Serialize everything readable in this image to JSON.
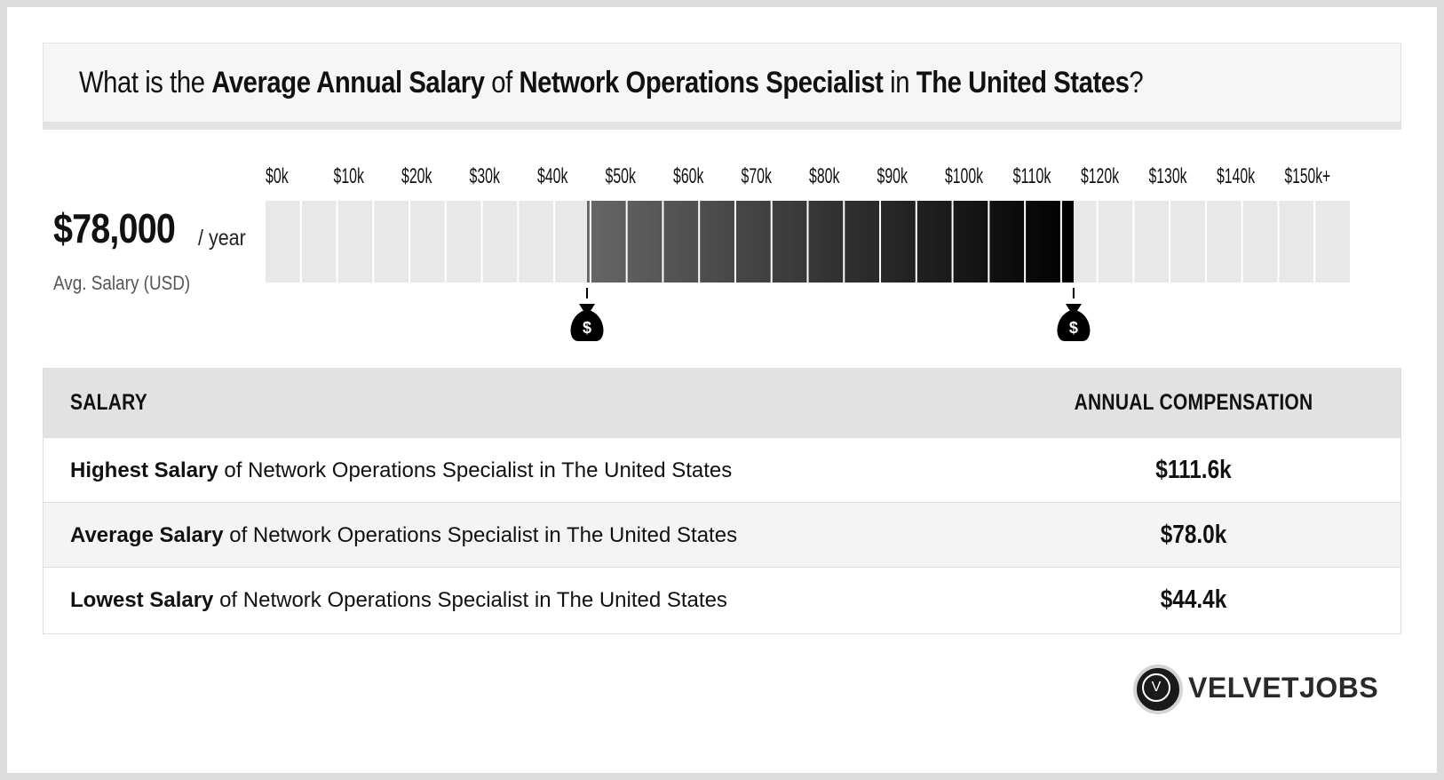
{
  "title": {
    "p1": "What is the ",
    "b1": "Average Annual Salary",
    "p2": " of ",
    "b2": "Network Operations Specialist",
    "p3": " in ",
    "b3": "The United States",
    "p4": "?"
  },
  "average": {
    "value": "$78,000",
    "unit": "/ year",
    "label": "Avg. Salary (USD)"
  },
  "chart_data": {
    "type": "bar",
    "tick_labels": [
      "$0k",
      "$10k",
      "$20k",
      "$30k",
      "$40k",
      "$50k",
      "$60k",
      "$70k",
      "$80k",
      "$90k",
      "$100k",
      "$110k",
      "$120k",
      "$130k",
      "$140k",
      "$150k+"
    ],
    "xlim": [
      0,
      150
    ],
    "range_low": 44.4,
    "range_high": 111.6,
    "average": 78.0,
    "low_marker_text": "$",
    "high_marker_text": "$",
    "colors": {
      "base": "#e8e8e8",
      "range_start": "#666666",
      "range_end": "#000000"
    }
  },
  "table": {
    "header_left": "SALARY",
    "header_right": "ANNUAL COMPENSATION",
    "rows": [
      {
        "bold": "Highest Salary",
        "rest": " of Network Operations Specialist in The United States",
        "value": "$111.6k"
      },
      {
        "bold": "Average Salary",
        "rest": " of Network Operations Specialist in The United States",
        "value": "$78.0k"
      },
      {
        "bold": "Lowest Salary",
        "rest": " of Network Operations Specialist in The United States",
        "value": "$44.4k"
      }
    ]
  },
  "brand": {
    "logo_letter": "V",
    "name": "VELVETJOBS",
    "icon": "velvetjobs-logo-icon"
  }
}
